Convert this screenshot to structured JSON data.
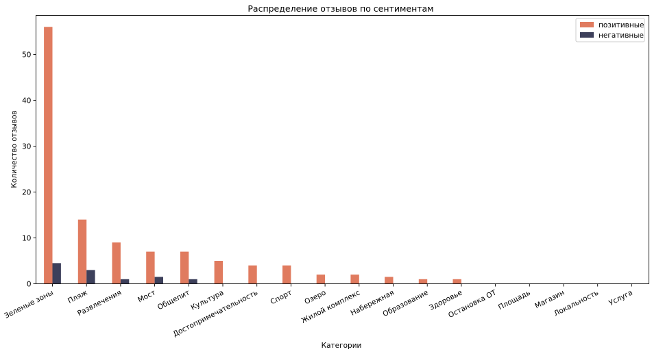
{
  "chart_data": {
    "type": "bar",
    "title": "Распределение отзывов по сентиментам",
    "xlabel": "Категории",
    "ylabel": "Количество отзывов",
    "ylim": [
      0,
      58.5
    ],
    "yticks": [
      0,
      10,
      20,
      30,
      40,
      50
    ],
    "grid": false,
    "legend_position": "top-right",
    "categories": [
      "Зеленые зоны",
      "Пляж",
      "Развлечения",
      "Мост",
      "Общепит",
      "Культура",
      "Достопримечательность",
      "Спорт",
      "Озеро",
      "Жилой комплекс",
      "Набережная",
      "Образование",
      "Здоровье",
      "Остановка ОТ",
      "Площадь",
      "Магазин",
      "Локальность",
      "Услуга"
    ],
    "series": [
      {
        "name": "позитивные",
        "color": "#e07b5f",
        "values": [
          56,
          14,
          9,
          7,
          7,
          5,
          4,
          4,
          2,
          2,
          1.5,
          1,
          1,
          0,
          0,
          0,
          0,
          0
        ]
      },
      {
        "name": "негативные",
        "color": "#3d405b",
        "values": [
          4.5,
          3,
          1,
          1.5,
          1,
          0,
          0,
          0,
          0,
          0,
          0,
          0,
          0,
          0,
          0,
          0,
          0,
          0
        ]
      }
    ]
  }
}
